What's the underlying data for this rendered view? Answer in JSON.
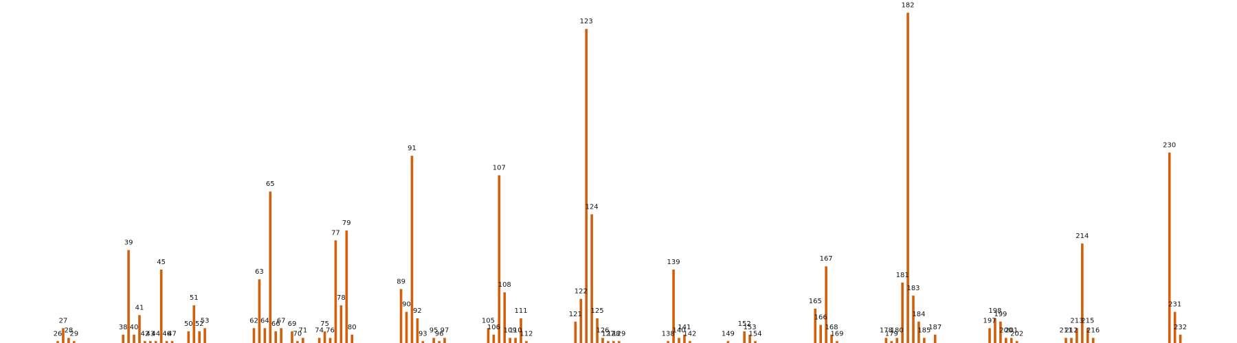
{
  "chart_data": {
    "type": "bar",
    "title": "",
    "xlabel": "",
    "ylabel": "",
    "grid": false,
    "axes_visible": false,
    "bar_color": "#d35f0a",
    "ylim": [
      0,
      105
    ],
    "data": [
      {
        "x": 26,
        "label": "26",
        "value": 1
      },
      {
        "x": 27,
        "label": "27",
        "value": 5
      },
      {
        "x": 28,
        "label": "28",
        "value": 2
      },
      {
        "x": 29,
        "label": "29",
        "value": 1
      },
      {
        "x": 38,
        "label": "38",
        "value": 3
      },
      {
        "x": 39,
        "label": "39",
        "value": 29
      },
      {
        "x": 40,
        "label": "40",
        "value": 3
      },
      {
        "x": 41,
        "label": "41",
        "value": 9
      },
      {
        "x": 42,
        "label": "42",
        "value": 1
      },
      {
        "x": 43,
        "label": "43",
        "value": 1
      },
      {
        "x": 44,
        "label": "44",
        "value": 1
      },
      {
        "x": 45,
        "label": "45",
        "value": 23
      },
      {
        "x": 46,
        "label": "46",
        "value": 1
      },
      {
        "x": 47,
        "label": "47",
        "value": 1
      },
      {
        "x": 50,
        "label": "50",
        "value": 4
      },
      {
        "x": 51,
        "label": "51",
        "value": 12
      },
      {
        "x": 52,
        "label": "52",
        "value": 4
      },
      {
        "x": 53,
        "label": "53",
        "value": 5
      },
      {
        "x": 62,
        "label": "62",
        "value": 5
      },
      {
        "x": 63,
        "label": "63",
        "value": 20
      },
      {
        "x": 64,
        "label": "64",
        "value": 5
      },
      {
        "x": 65,
        "label": "65",
        "value": 47
      },
      {
        "x": 66,
        "label": "66",
        "value": 4
      },
      {
        "x": 67,
        "label": "67",
        "value": 5
      },
      {
        "x": 69,
        "label": "69",
        "value": 4
      },
      {
        "x": 70,
        "label": "70",
        "value": 1
      },
      {
        "x": 71,
        "label": "71",
        "value": 2
      },
      {
        "x": 74,
        "label": "74",
        "value": 2
      },
      {
        "x": 75,
        "label": "75",
        "value": 4
      },
      {
        "x": 76,
        "label": "76",
        "value": 2
      },
      {
        "x": 77,
        "label": "77",
        "value": 32
      },
      {
        "x": 78,
        "label": "78",
        "value": 12
      },
      {
        "x": 79,
        "label": "79",
        "value": 35
      },
      {
        "x": 80,
        "label": "80",
        "value": 3
      },
      {
        "x": 89,
        "label": "89",
        "value": 17
      },
      {
        "x": 90,
        "label": "90",
        "value": 10
      },
      {
        "x": 91,
        "label": "91",
        "value": 58
      },
      {
        "x": 92,
        "label": "92",
        "value": 8
      },
      {
        "x": 93,
        "label": "93",
        "value": 1
      },
      {
        "x": 95,
        "label": "95",
        "value": 2
      },
      {
        "x": 96,
        "label": "96",
        "value": 1
      },
      {
        "x": 97,
        "label": "97",
        "value": 2
      },
      {
        "x": 105,
        "label": "105",
        "value": 5
      },
      {
        "x": 106,
        "label": "106",
        "value": 3
      },
      {
        "x": 107,
        "label": "107",
        "value": 52
      },
      {
        "x": 108,
        "label": "108",
        "value": 16
      },
      {
        "x": 109,
        "label": "109",
        "value": 2
      },
      {
        "x": 110,
        "label": "110",
        "value": 2
      },
      {
        "x": 111,
        "label": "111",
        "value": 8
      },
      {
        "x": 112,
        "label": "112",
        "value": 1
      },
      {
        "x": 121,
        "label": "121",
        "value": 7
      },
      {
        "x": 122,
        "label": "122",
        "value": 14
      },
      {
        "x": 123,
        "label": "123",
        "value": 97
      },
      {
        "x": 124,
        "label": "124",
        "value": 40
      },
      {
        "x": 125,
        "label": "125",
        "value": 8
      },
      {
        "x": 126,
        "label": "126",
        "value": 2
      },
      {
        "x": 127,
        "label": "127",
        "value": 1
      },
      {
        "x": 128,
        "label": "128",
        "value": 1
      },
      {
        "x": 129,
        "label": "129",
        "value": 1
      },
      {
        "x": 138,
        "label": "138",
        "value": 1
      },
      {
        "x": 139,
        "label": "139",
        "value": 23
      },
      {
        "x": 140,
        "label": "140",
        "value": 2
      },
      {
        "x": 141,
        "label": "141",
        "value": 3
      },
      {
        "x": 142,
        "label": "142",
        "value": 1
      },
      {
        "x": 149,
        "label": "149",
        "value": 1
      },
      {
        "x": 152,
        "label": "152",
        "value": 4
      },
      {
        "x": 153,
        "label": "153",
        "value": 3
      },
      {
        "x": 154,
        "label": "154",
        "value": 1
      },
      {
        "x": 165,
        "label": "165",
        "value": 11
      },
      {
        "x": 166,
        "label": "166",
        "value": 6
      },
      {
        "x": 167,
        "label": "167",
        "value": 24
      },
      {
        "x": 168,
        "label": "168",
        "value": 3
      },
      {
        "x": 169,
        "label": "169",
        "value": 1
      },
      {
        "x": 178,
        "label": "178",
        "value": 2
      },
      {
        "x": 179,
        "label": "179",
        "value": 1
      },
      {
        "x": 180,
        "label": "180",
        "value": 2
      },
      {
        "x": 181,
        "label": "181",
        "value": 19
      },
      {
        "x": 182,
        "label": "182",
        "value": 102
      },
      {
        "x": 183,
        "label": "183",
        "value": 15
      },
      {
        "x": 184,
        "label": "184",
        "value": 7
      },
      {
        "x": 185,
        "label": "185",
        "value": 2
      },
      {
        "x": 187,
        "label": "187",
        "value": 3
      },
      {
        "x": 197,
        "label": "197",
        "value": 5
      },
      {
        "x": 198,
        "label": "198",
        "value": 8
      },
      {
        "x": 199,
        "label": "199",
        "value": 7
      },
      {
        "x": 200,
        "label": "200",
        "value": 2
      },
      {
        "x": 201,
        "label": "201",
        "value": 2
      },
      {
        "x": 202,
        "label": "202",
        "value": 1
      },
      {
        "x": 211,
        "label": "211",
        "value": 2
      },
      {
        "x": 212,
        "label": "212",
        "value": 2
      },
      {
        "x": 213,
        "label": "213",
        "value": 5
      },
      {
        "x": 214,
        "label": "214",
        "value": 31
      },
      {
        "x": 215,
        "label": "215",
        "value": 5
      },
      {
        "x": 216,
        "label": "216",
        "value": 2
      },
      {
        "x": 230,
        "label": "230",
        "value": 59
      },
      {
        "x": 231,
        "label": "231",
        "value": 10
      },
      {
        "x": 232,
        "label": "232",
        "value": 3
      }
    ]
  }
}
